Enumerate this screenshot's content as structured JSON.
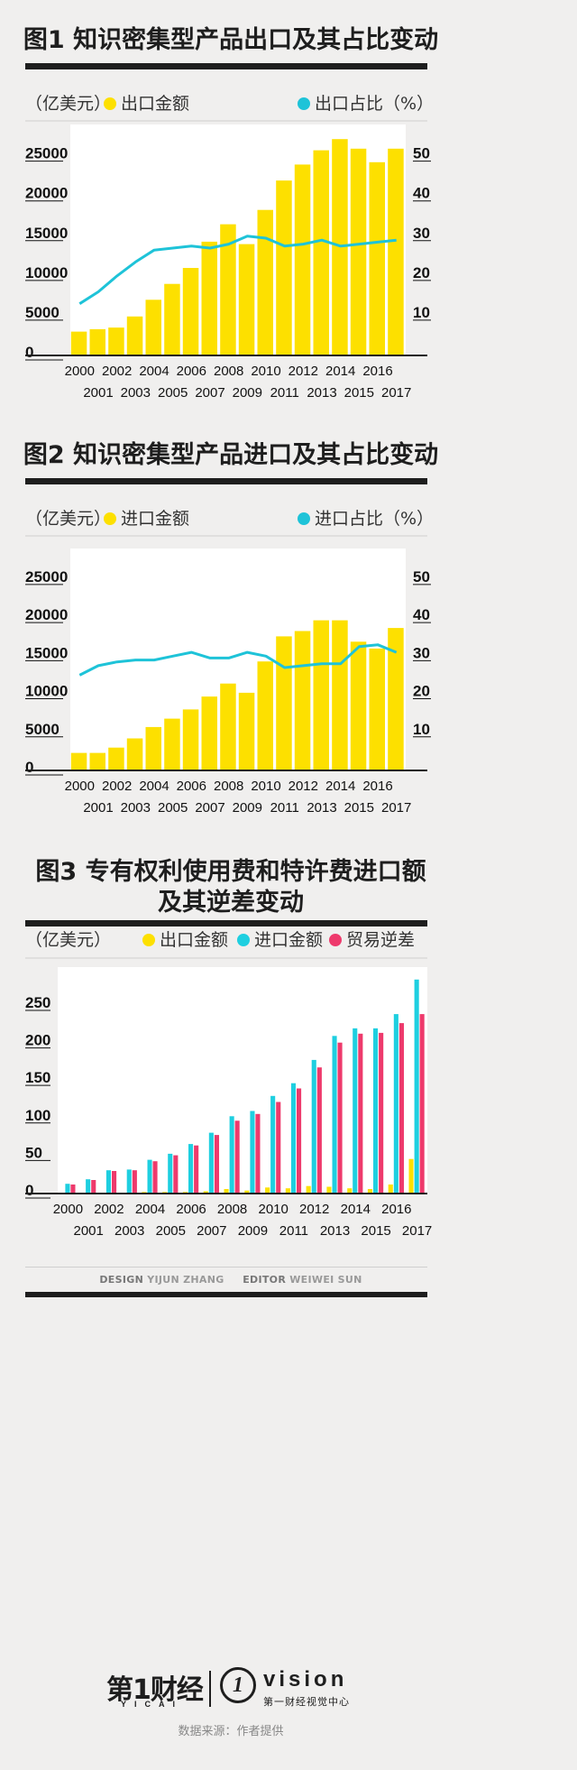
{
  "page": {
    "credits_design_label": "DESIGN",
    "credits_design_name": "YIJUN ZHANG",
    "credits_editor_label": "EDITOR",
    "credits_editor_name": "WEIWEI SUN",
    "source": "数据来源：作者提供",
    "logo_yicai": "第1财经",
    "logo_yicai_sub": "YICAI",
    "logo_one": "1",
    "logo_vision": "vision",
    "logo_vision_sub": "第一财经视觉中心"
  },
  "colors": {
    "bar_yellow": "#fde000",
    "bar_cyan": "#1ecfe0",
    "bar_pink": "#ee3a6c",
    "line_cyan": "#1ec3d8",
    "text_dark": "#1e1e1e"
  },
  "chart_data": [
    {
      "type": "bar",
      "title": "图1 知识密集型产品出口及其占比变动",
      "ylabel": "（亿美元）",
      "y2label": "出口占比（%）",
      "legend": [
        "出口金额",
        "出口占比（%）"
      ],
      "categories": [
        "2000",
        "2001",
        "2002",
        "2003",
        "2004",
        "2005",
        "2006",
        "2007",
        "2008",
        "2009",
        "2010",
        "2011",
        "2012",
        "2013",
        "2014",
        "2015",
        "2016",
        "2017"
      ],
      "x_labels_top": [
        "2000",
        "2002",
        "2004",
        "2006",
        "2008",
        "2010",
        "2012",
        "2014",
        "2016"
      ],
      "x_labels_bottom": [
        "2001",
        "2003",
        "2005",
        "2007",
        "2009",
        "2011",
        "2013",
        "2015",
        "2017"
      ],
      "y_ticks": [
        "0",
        "5000",
        "10000",
        "15000",
        "20000",
        "25000"
      ],
      "y2_ticks": [
        "10",
        "20",
        "30",
        "40",
        "50"
      ],
      "ylim": [
        0,
        27000
      ],
      "y2lim": [
        0,
        54
      ],
      "series": [
        {
          "name": "出口金额",
          "kind": "bar",
          "axis": "left",
          "color": "#fde000",
          "values": [
            3000,
            3300,
            3500,
            4900,
            7000,
            9000,
            11000,
            14300,
            16500,
            14000,
            18300,
            22000,
            24000,
            25800,
            27200,
            26000,
            24300,
            26000
          ]
        },
        {
          "name": "出口占比（%）",
          "kind": "line",
          "axis": "right",
          "color": "#1ec3d8",
          "values": [
            13,
            16,
            20,
            23.5,
            26.5,
            27,
            27.5,
            27,
            28,
            30,
            29.5,
            27.5,
            28,
            29,
            27.5,
            28,
            28.5,
            29
          ]
        }
      ]
    },
    {
      "type": "bar",
      "title": "图2 知识密集型产品进口及其占比变动",
      "ylabel": "（亿美元）",
      "y2label": "进口占比（%）",
      "legend": [
        "进口金额",
        "进口占比（%）"
      ],
      "categories": [
        "2000",
        "2001",
        "2002",
        "2003",
        "2004",
        "2005",
        "2006",
        "2007",
        "2008",
        "2009",
        "2010",
        "2011",
        "2012",
        "2013",
        "2014",
        "2015",
        "2016",
        "2017"
      ],
      "x_labels_top": [
        "2000",
        "2002",
        "2004",
        "2006",
        "2008",
        "2010",
        "2012",
        "2014",
        "2016"
      ],
      "x_labels_bottom": [
        "2001",
        "2003",
        "2005",
        "2007",
        "2009",
        "2011",
        "2013",
        "2015",
        "2017"
      ],
      "y_ticks": [
        "0",
        "5000",
        "10000",
        "15000",
        "20000",
        "25000"
      ],
      "y2_ticks": [
        "10",
        "20",
        "30",
        "40",
        "50"
      ],
      "ylim": [
        0,
        27000
      ],
      "y2lim": [
        0,
        54
      ],
      "series": [
        {
          "name": "进口金额",
          "kind": "bar",
          "axis": "left",
          "color": "#fde000",
          "values": [
            2300,
            2300,
            3000,
            4200,
            5700,
            6800,
            8000,
            9700,
            11400,
            10200,
            14300,
            17600,
            18300,
            19700,
            19700,
            16900,
            16000,
            18700
          ]
        },
        {
          "name": "进口占比（%）",
          "kind": "line",
          "axis": "right",
          "color": "#1ec3d8",
          "values": [
            25,
            27.5,
            28.5,
            29,
            29,
            30,
            31,
            29.5,
            29.5,
            31,
            30,
            27,
            27.5,
            28,
            28,
            32.5,
            33,
            31
          ]
        }
      ]
    },
    {
      "type": "bar",
      "title": "图3 专有权利使用费和特许费进口额及其逆差变动",
      "title_lines": [
        "图3 专有权利使用费和特许费进口额",
        "及其逆差变动"
      ],
      "ylabel": "（亿美元）",
      "legend": [
        "出口金额",
        "进口金额",
        "贸易逆差"
      ],
      "categories": [
        "2000",
        "2001",
        "2002",
        "2003",
        "2004",
        "2005",
        "2006",
        "2007",
        "2008",
        "2009",
        "2010",
        "2011",
        "2012",
        "2013",
        "2014",
        "2015",
        "2016",
        "2017"
      ],
      "x_labels_top": [
        "2000",
        "2002",
        "2004",
        "2006",
        "2008",
        "2010",
        "2012",
        "2014",
        "2016"
      ],
      "x_labels_bottom": [
        "2001",
        "2003",
        "2005",
        "2007",
        "2009",
        "2011",
        "2013",
        "2015",
        "2017"
      ],
      "y_ticks": [
        "0",
        "50",
        "100",
        "150",
        "200",
        "250"
      ],
      "ylim": [
        0,
        280
      ],
      "series": [
        {
          "name": "出口金额",
          "kind": "bar",
          "color": "#fde000",
          "values": [
            1,
            1,
            1,
            1,
            2,
            2,
            2,
            3,
            6,
            4,
            8,
            7,
            10,
            9,
            7,
            6,
            12,
            46
          ]
        },
        {
          "name": "进口金额",
          "kind": "bar",
          "color": "#1ecfe0",
          "values": [
            13,
            19,
            31,
            32,
            45,
            53,
            66,
            81,
            103,
            110,
            130,
            147,
            178,
            210,
            220,
            220,
            239,
            285
          ]
        },
        {
          "name": "贸易逆差",
          "kind": "bar",
          "color": "#ee3a6c",
          "values": [
            12,
            18,
            30,
            31,
            43,
            51,
            64,
            78,
            97,
            106,
            122,
            140,
            168,
            201,
            213,
            214,
            227,
            239
          ]
        }
      ]
    }
  ]
}
